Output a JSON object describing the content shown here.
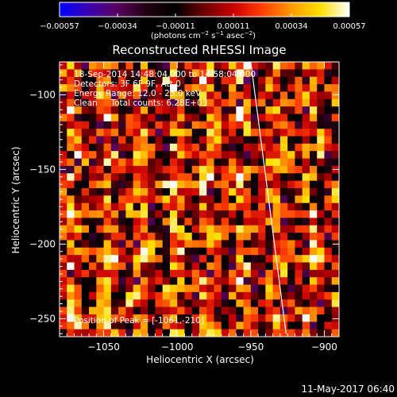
{
  "chart_data": {
    "type": "heatmap",
    "title": "Reconstructed RHESSI Image",
    "xlabel": "Heliocentric X (arcsec)",
    "ylabel": "Heliocentric Y (arcsec)",
    "xlim": [
      -1080,
      -890
    ],
    "ylim": [
      -262,
      -78
    ],
    "x_ticks": [
      {
        "value": -1050,
        "label": "−1050"
      },
      {
        "value": -1000,
        "label": "−1000"
      },
      {
        "value": -950,
        "label": "−950"
      },
      {
        "value": -900,
        "label": "−900"
      }
    ],
    "y_ticks": [
      {
        "value": -100,
        "label": "−100"
      },
      {
        "value": -150,
        "label": "−150"
      },
      {
        "value": -200,
        "label": "−200"
      },
      {
        "value": -250,
        "label": "−250"
      }
    ],
    "colorbar": {
      "vmin": -0.00057,
      "vmax": 0.00057,
      "tick_labels": [
        "−0.00057",
        "−0.00034",
        "−0.00011",
        "0.00011",
        "0.00034",
        "0.00057"
      ],
      "unit_prefix": "(photons cm",
      "unit_exp1": "−2",
      "unit_mid": " s",
      "unit_exp2": "−1",
      "unit_mid2": " asec",
      "unit_exp3": "−2",
      "unit_suffix": ")",
      "colors": [
        "#0000ff",
        "#3a00b0",
        "#5a0060",
        "#200010",
        "#000000",
        "#6e0000",
        "#c80000",
        "#ff4000",
        "#ff9a00",
        "#ffe000",
        "#ffffff"
      ]
    },
    "annotations": [
      "18-Sep-2014 14:48:04.000 to 14:58:04.000",
      "Detectors: 3F 6F 9F, Att 0",
      "Energy Range: 12.0 - 25.0 keV",
      "Clean     Total counts: 6.28E+03"
    ],
    "peak_label": "Position of Peak = [-1061,-210]",
    "peak_position": [
      -1061,
      -210
    ],
    "limb_line": {
      "x": [
        -950,
        -926
      ],
      "y": [
        -78,
        -260
      ],
      "color": "#ffffff"
    },
    "image_grid": {
      "nx": 38,
      "ny": 37,
      "seed": 7
    }
  },
  "footer": {
    "timestamp": "11-May-2017 06:40"
  }
}
